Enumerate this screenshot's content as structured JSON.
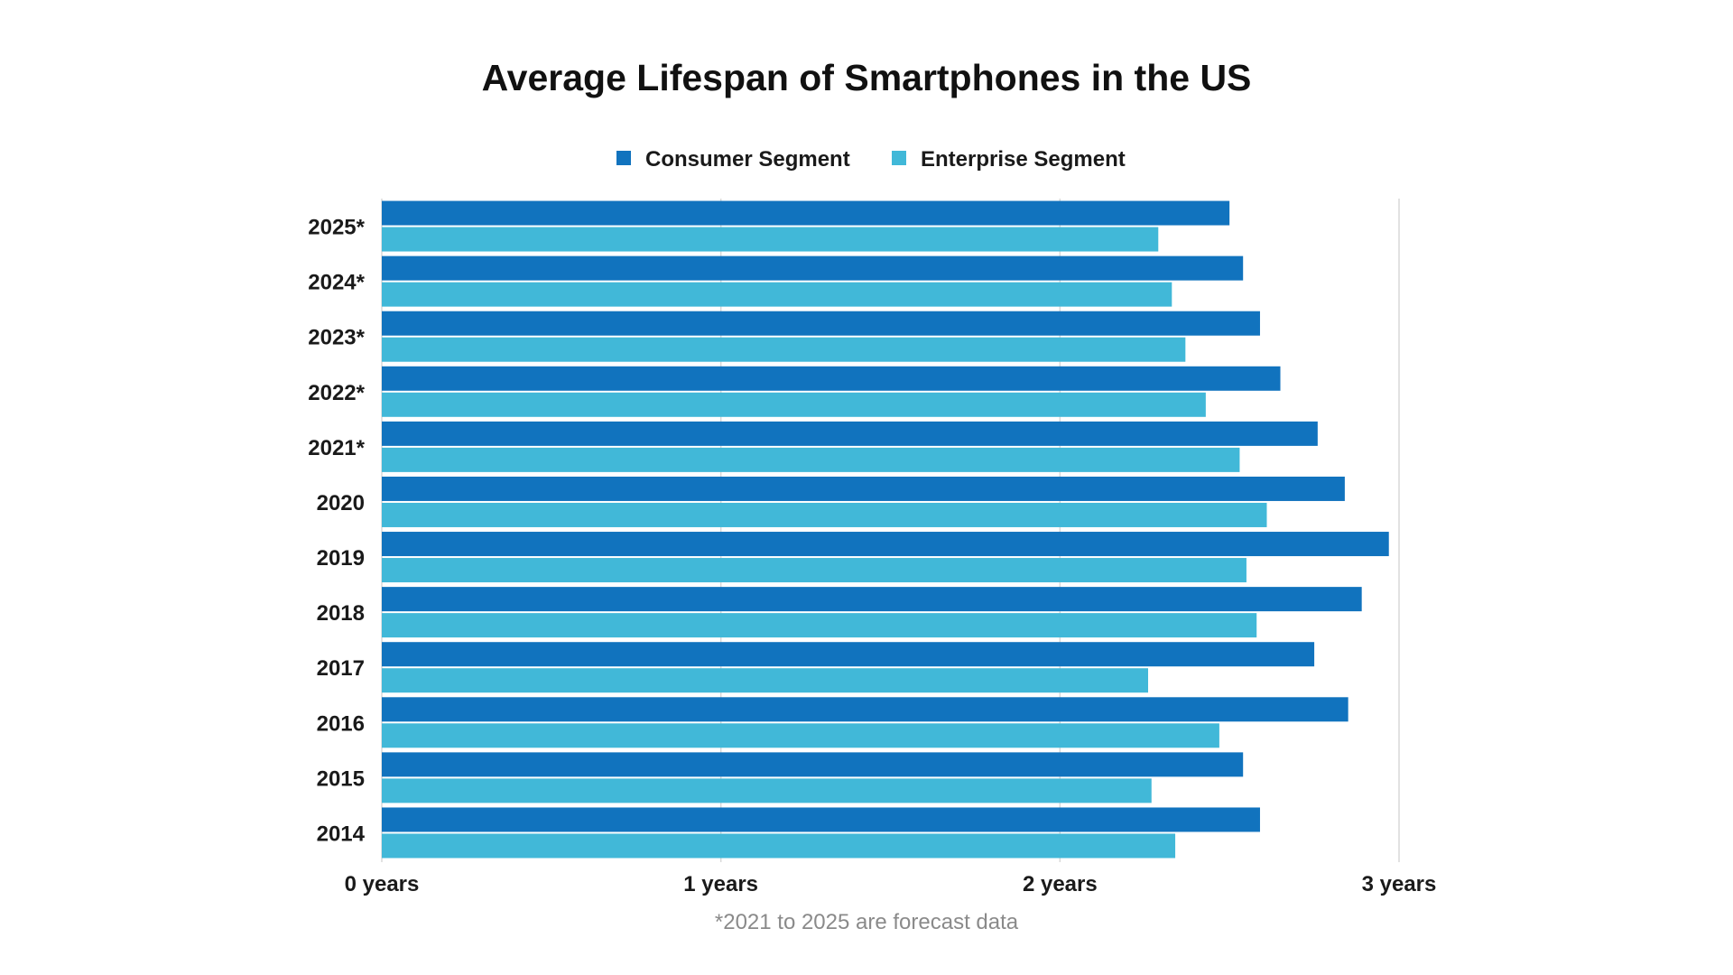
{
  "chart_data": {
    "type": "bar",
    "orientation": "horizontal",
    "title": "Average Lifespan of Smartphones in the US",
    "xlabel": "",
    "ylabel": "",
    "xlim": [
      0,
      3
    ],
    "x_ticks": [
      {
        "value": 0,
        "label": "0 years"
      },
      {
        "value": 1,
        "label": "1 years"
      },
      {
        "value": 2,
        "label": "2 years"
      },
      {
        "value": 3,
        "label": "3 years"
      }
    ],
    "grid": true,
    "legend_position": "top-center",
    "categories": [
      "2025*",
      "2024*",
      "2023*",
      "2022*",
      "2021*",
      "2020",
      "2019",
      "2018",
      "2017",
      "2016",
      "2015",
      "2014"
    ],
    "series": [
      {
        "name": "Consumer Segment",
        "color": "#1173BE",
        "values": [
          2.5,
          2.54,
          2.59,
          2.65,
          2.76,
          2.84,
          2.97,
          2.89,
          2.75,
          2.85,
          2.54,
          2.59
        ]
      },
      {
        "name": "Enterprise Segment",
        "color": "#41B8D8",
        "values": [
          2.29,
          2.33,
          2.37,
          2.43,
          2.53,
          2.61,
          2.55,
          2.58,
          2.26,
          2.47,
          2.27,
          2.34
        ]
      }
    ],
    "footnote": "*2021 to 2025 are forecast data"
  }
}
